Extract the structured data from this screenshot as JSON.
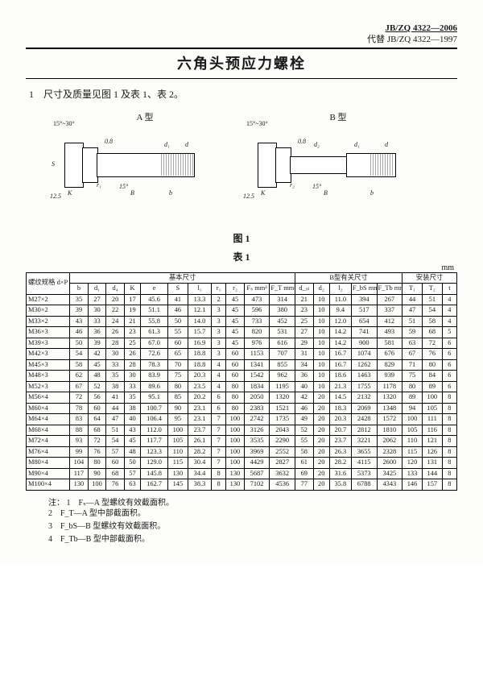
{
  "header": {
    "code_main": "JB/ZQ 4322—2006",
    "code_sub": "代替 JB/ZQ 4322—1997",
    "title": "六角头预应力螺栓"
  },
  "section1": "1　尺寸及质量见图 1 及表 1、表 2。",
  "fig": {
    "labelA": "A 型",
    "labelB": "B 型",
    "ang1": "15°~30°",
    "ang2": "15°",
    "txt08": "0.8",
    "txt125": "12.5",
    "dK": "K",
    "dS": "S",
    "dB": "B",
    "de": "e",
    "dl": "l",
    "dd": "d",
    "dd1": "d₁",
    "dd2": "d₂",
    "db": "b",
    "dr1": "r₁",
    "dr2": "r₂"
  },
  "fig_caption": "图 1",
  "table_caption": "表 1",
  "unit": "mm",
  "table": {
    "group_basic": "基本尺寸",
    "group_b": "B型有关尺寸",
    "group_inst": "安装尺寸",
    "cols": [
      "螺纹规格 d×P",
      "b",
      "d₁",
      "d₄",
      "K",
      "e",
      "S",
      "l₁",
      "r₁",
      "r₂",
      "Fₛ mm²",
      "F_T mm²",
      "d_ₛₗ",
      "d₂",
      "l₂",
      "F_bS mm²",
      "F_Tb mm²",
      "T₁",
      "T₂",
      "t"
    ],
    "rows": [
      [
        "M27×2",
        "35",
        "27",
        "20",
        "17",
        "45.6",
        "41",
        "13.3",
        "2",
        "45",
        "473",
        "314",
        "21",
        "10",
        "11.0",
        "394",
        "267",
        "44",
        "51",
        "4"
      ],
      [
        "M30×2",
        "39",
        "30",
        "22",
        "19",
        "51.1",
        "46",
        "12.1",
        "3",
        "45",
        "596",
        "380",
        "23",
        "10",
        "9.4",
        "517",
        "337",
        "47",
        "54",
        "4"
      ],
      [
        "M33×2",
        "43",
        "33",
        "24",
        "21",
        "55.8",
        "50",
        "14.0",
        "3",
        "45",
        "733",
        "452",
        "25",
        "10",
        "12.0",
        "654",
        "412",
        "51",
        "58",
        "4"
      ],
      [
        "M36×3",
        "46",
        "36",
        "26",
        "23",
        "61.3",
        "55",
        "15.7",
        "3",
        "45",
        "820",
        "531",
        "27",
        "10",
        "14.2",
        "741",
        "493",
        "59",
        "68",
        "5"
      ],
      [
        "M39×3",
        "50",
        "39",
        "28",
        "25",
        "67.0",
        "60",
        "16.9",
        "3",
        "45",
        "976",
        "616",
        "29",
        "10",
        "14.2",
        "900",
        "581",
        "63",
        "72",
        "6"
      ],
      [
        "M42×3",
        "54",
        "42",
        "30",
        "26",
        "72.6",
        "65",
        "18.8",
        "3",
        "60",
        "1153",
        "707",
        "31",
        "10",
        "16.7",
        "1074",
        "676",
        "67",
        "76",
        "6"
      ],
      [
        "M45×3",
        "58",
        "45",
        "33",
        "28",
        "78.3",
        "70",
        "18.8",
        "4",
        "60",
        "1341",
        "855",
        "34",
        "10",
        "16.7",
        "1262",
        "829",
        "71",
        "80",
        "6"
      ],
      [
        "M48×3",
        "62",
        "48",
        "35",
        "30",
        "83.9",
        "75",
        "20.3",
        "4",
        "60",
        "1542",
        "962",
        "36",
        "10",
        "18.6",
        "1463",
        "939",
        "75",
        "84",
        "6"
      ],
      [
        "M52×3",
        "67",
        "52",
        "38",
        "33",
        "89.6",
        "80",
        "23.5",
        "4",
        "80",
        "1834",
        "1195",
        "40",
        "10",
        "21.3",
        "1755",
        "1178",
        "80",
        "89",
        "6"
      ],
      [
        "M56×4",
        "72",
        "56",
        "41",
        "35",
        "95.1",
        "85",
        "20.2",
        "6",
        "80",
        "2050",
        "1320",
        "42",
        "20",
        "14.5",
        "2132",
        "1320",
        "89",
        "100",
        "8"
      ],
      [
        "M60×4",
        "78",
        "60",
        "44",
        "38",
        "100.7",
        "90",
        "23.1",
        "6",
        "80",
        "2383",
        "1521",
        "46",
        "20",
        "18.3",
        "2069",
        "1348",
        "94",
        "105",
        "8"
      ],
      [
        "M64×4",
        "83",
        "64",
        "47",
        "40",
        "106.4",
        "95",
        "23.1",
        "7",
        "100",
        "2742",
        "1735",
        "49",
        "20",
        "20.3",
        "2428",
        "1572",
        "100",
        "111",
        "8"
      ],
      [
        "M68×4",
        "88",
        "68",
        "51",
        "43",
        "112.0",
        "100",
        "23.7",
        "7",
        "100",
        "3126",
        "2043",
        "52",
        "20",
        "20.7",
        "2812",
        "1810",
        "105",
        "116",
        "8"
      ],
      [
        "M72×4",
        "93",
        "72",
        "54",
        "45",
        "117.7",
        "105",
        "26.1",
        "7",
        "100",
        "3535",
        "2290",
        "55",
        "20",
        "23.7",
        "3221",
        "2062",
        "110",
        "121",
        "8"
      ],
      [
        "M76×4",
        "99",
        "76",
        "57",
        "48",
        "123.3",
        "110",
        "28.2",
        "7",
        "100",
        "3969",
        "2552",
        "58",
        "20",
        "26.3",
        "3655",
        "2328",
        "115",
        "126",
        "8"
      ],
      [
        "M80×4",
        "104",
        "80",
        "60",
        "50",
        "129.0",
        "115",
        "30.4",
        "7",
        "100",
        "4429",
        "2827",
        "61",
        "20",
        "28.2",
        "4115",
        "2600",
        "120",
        "131",
        "8"
      ],
      [
        "M90×4",
        "117",
        "90",
        "68",
        "57",
        "145.8",
        "130",
        "34.4",
        "8",
        "130",
        "5687",
        "3632",
        "69",
        "20",
        "31.6",
        "5373",
        "3425",
        "133",
        "144",
        "8"
      ],
      [
        "M100×4",
        "130",
        "100",
        "76",
        "63",
        "162.7",
        "145",
        "38.3",
        "8",
        "130",
        "7102",
        "4536",
        "77",
        "20",
        "35.8",
        "6788",
        "4343",
        "146",
        "157",
        "8"
      ]
    ]
  },
  "notes": {
    "label": "注：",
    "items": [
      "1　Fₛ—A 型螺纹有效截面积。",
      "2　F_T—A 型中部截面积。",
      "3　F_bS—B 型螺纹有效截面积。",
      "4　F_Tb—B 型中部截面积。"
    ]
  }
}
